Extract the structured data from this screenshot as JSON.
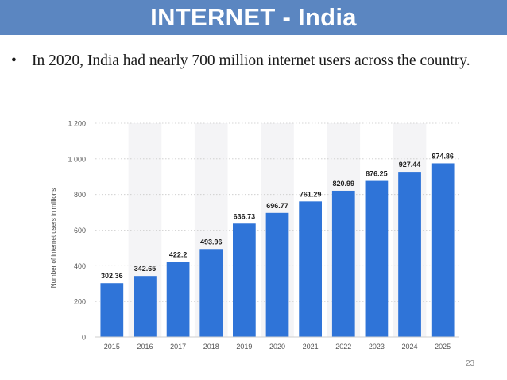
{
  "header": {
    "title": "INTERNET - India"
  },
  "bullet": {
    "symbol": "•",
    "text": "In 2020, India had nearly 700 million internet users across the country."
  },
  "slide": {
    "number": "23"
  },
  "colors": {
    "header_bg": "#5b86c1",
    "bar": "#2f74d8",
    "band": "#f4f4f6"
  },
  "chart_data": {
    "type": "bar",
    "categories": [
      "2015",
      "2016",
      "2017",
      "2018",
      "2019",
      "2020",
      "2021",
      "2022",
      "2023",
      "2024",
      "2025"
    ],
    "values": [
      302.36,
      342.65,
      422.2,
      493.96,
      636.73,
      696.77,
      761.29,
      820.99,
      876.25,
      927.44,
      974.86
    ],
    "value_labels": [
      "302.36",
      "342.65",
      "422.2",
      "493.96",
      "636.73",
      "696.77",
      "761.29",
      "820.99",
      "876.25",
      "927.44",
      "974.86"
    ],
    "ylabel": "Number of internet users in millions",
    "yticks": [
      0,
      200,
      400,
      600,
      800,
      1000,
      1200
    ],
    "ytick_labels": [
      "0",
      "200",
      "400",
      "600",
      "800",
      "1 000",
      "1 200"
    ],
    "ylim": [
      0,
      1200
    ],
    "grid": "horizontal dotted",
    "legend": "none"
  }
}
